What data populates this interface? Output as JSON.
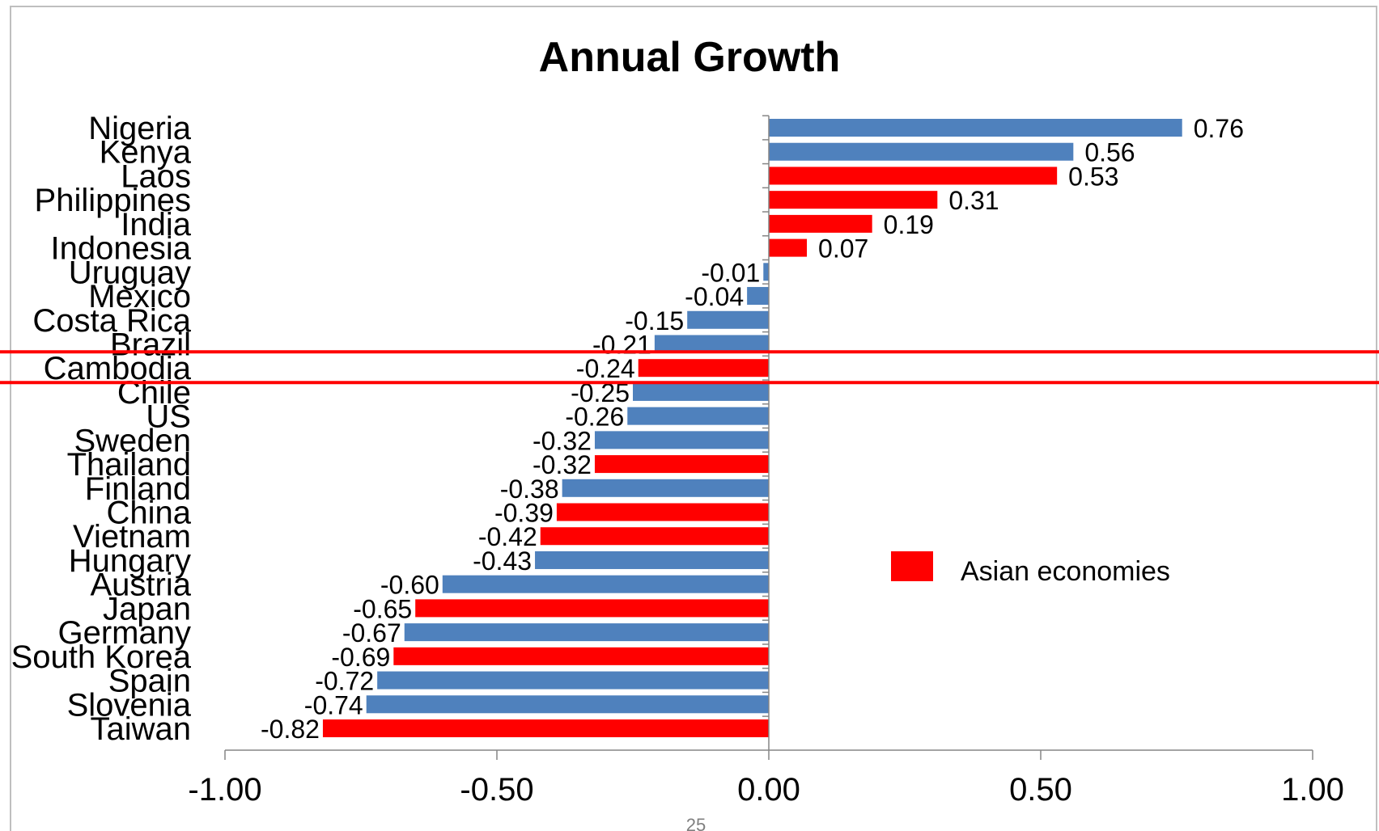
{
  "chart_data": {
    "type": "bar",
    "orientation": "horizontal",
    "title": "Annual Growth",
    "xlim": [
      -1.0,
      1.0
    ],
    "xticks": [
      "-1.00",
      "-0.50",
      "0.00",
      "0.50",
      "1.00"
    ],
    "xtick_values": [
      -1.0,
      -0.5,
      0.0,
      0.5,
      1.0
    ],
    "categories": [
      "Nigeria",
      "Kenya",
      "Laos",
      "Philippines",
      "India",
      "Indonesia",
      "Uruguay",
      "Mexico",
      "Costa Rica",
      "Brazil",
      "Cambodia",
      "Chile",
      "US",
      "Sweden",
      "Thailand",
      "Finland",
      "China",
      "Vietnam",
      "Hungary",
      "Austria",
      "Japan",
      "Germany",
      "South Korea",
      "Spain",
      "Slovenia",
      "Taiwan"
    ],
    "values": [
      0.76,
      0.56,
      0.53,
      0.31,
      0.19,
      0.07,
      -0.01,
      -0.04,
      -0.15,
      -0.21,
      -0.24,
      -0.25,
      -0.26,
      -0.32,
      -0.32,
      -0.38,
      -0.39,
      -0.42,
      -0.43,
      -0.6,
      -0.65,
      -0.67,
      -0.69,
      -0.72,
      -0.74,
      -0.82
    ],
    "value_labels": [
      "0.76",
      "0.56",
      "0.53",
      "0.31",
      "0.19",
      "0.07",
      "-0.01",
      "-0.04",
      "-0.15",
      "-0.21",
      "-0.24",
      "-0.25",
      "-0.26",
      "-0.32",
      "-0.32",
      "-0.38",
      "-0.39",
      "-0.42",
      "-0.43",
      "-0.60",
      "-0.65",
      "-0.67",
      "-0.69",
      "-0.72",
      "-0.74",
      "-0.82"
    ],
    "asian": [
      false,
      false,
      true,
      true,
      true,
      true,
      false,
      false,
      false,
      false,
      true,
      false,
      false,
      false,
      true,
      false,
      true,
      true,
      false,
      false,
      true,
      false,
      true,
      false,
      false,
      true
    ],
    "colors": {
      "default": "#4f81bd",
      "asian": "#ff0000",
      "highlight_line": "#ff0000"
    },
    "legend": {
      "label": "Asian economies",
      "color": "#ff0000",
      "placement": "right-middle"
    },
    "highlighted_category": "Cambodia",
    "grid": false
  },
  "footer_text": "25"
}
